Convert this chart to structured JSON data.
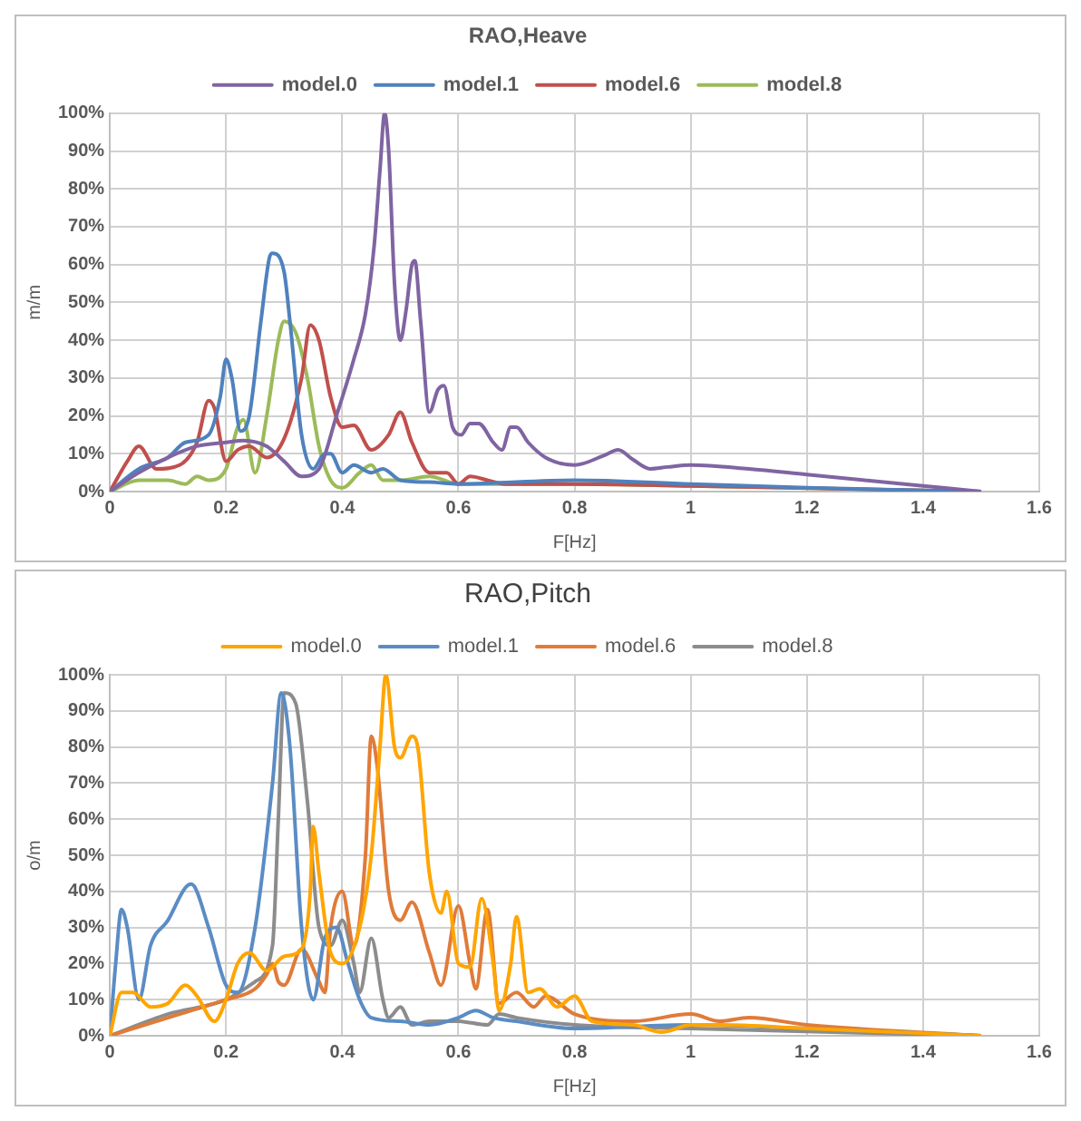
{
  "chart_data": [
    {
      "type": "line",
      "title": "RAO,Heave",
      "xlabel": "F[Hz]",
      "ylabel": "m/m",
      "legend": "top",
      "grid": true,
      "marker": "none",
      "line_style": "solid",
      "xlim": [
        0,
        1.6
      ],
      "xticks": [
        0,
        0.2,
        0.4,
        0.6,
        0.8,
        1,
        1.2,
        1.4,
        1.6
      ],
      "ylim": [
        0,
        100
      ],
      "yticks": [
        {
          "value": 0,
          "label": "0%"
        },
        {
          "value": 10,
          "label": "10%"
        },
        {
          "value": 20,
          "label": "20%"
        },
        {
          "value": 30,
          "label": "30%"
        },
        {
          "value": 40,
          "label": "40%"
        },
        {
          "value": 50,
          "label": "50%"
        },
        {
          "value": 60,
          "label": "60%"
        },
        {
          "value": 70,
          "label": "70%"
        },
        {
          "value": 80,
          "label": "80%"
        },
        {
          "value": 90,
          "label": "90%"
        },
        {
          "value": 100,
          "label": "100%"
        }
      ],
      "series": [
        {
          "name": "model.0",
          "color": "#8064a2",
          "x": [
            0,
            0.05,
            0.1,
            0.15,
            0.2,
            0.23,
            0.27,
            0.3,
            0.33,
            0.36,
            0.39,
            0.42,
            0.44,
            0.455,
            0.465,
            0.473,
            0.48,
            0.49,
            0.5,
            0.51,
            0.52,
            0.525,
            0.535,
            0.55,
            0.565,
            0.575,
            0.59,
            0.605,
            0.62,
            0.635,
            0.66,
            0.675,
            0.69,
            0.7,
            0.72,
            0.75,
            0.8,
            0.85,
            0.875,
            0.9,
            0.93,
            0.96,
            1,
            1.1,
            1.2,
            1.3,
            1.4,
            1.5
          ],
          "values": [
            0,
            5,
            9,
            12,
            13,
            13.5,
            12,
            8,
            4,
            6,
            20,
            35,
            47,
            65,
            85,
            100,
            90,
            55,
            40,
            48,
            60,
            61,
            45,
            21,
            27,
            28,
            17,
            15,
            18,
            18,
            13,
            11,
            17,
            17,
            13,
            9,
            7,
            9.5,
            11,
            8.5,
            6,
            6.5,
            7,
            6,
            4.5,
            3,
            1.5,
            0
          ]
        },
        {
          "name": "model.1",
          "color": "#4f81bd",
          "x": [
            0,
            0.05,
            0.1,
            0.13,
            0.17,
            0.19,
            0.2,
            0.21,
            0.225,
            0.24,
            0.26,
            0.275,
            0.28,
            0.3,
            0.31,
            0.33,
            0.35,
            0.37,
            0.38,
            0.4,
            0.42,
            0.45,
            0.47,
            0.5,
            0.55,
            0.6,
            0.8,
            1,
            1.2,
            1.5
          ],
          "values": [
            0,
            6,
            9,
            13,
            15,
            25,
            35,
            30,
            16,
            20,
            45,
            62,
            63,
            58,
            45,
            15,
            6,
            10,
            10,
            5,
            7,
            5,
            6,
            3,
            2.5,
            2,
            3,
            2,
            1,
            0
          ]
        },
        {
          "name": "model.6",
          "color": "#c0504d",
          "x": [
            0,
            0.03,
            0.05,
            0.08,
            0.12,
            0.15,
            0.17,
            0.18,
            0.2,
            0.22,
            0.24,
            0.27,
            0.3,
            0.33,
            0.345,
            0.36,
            0.38,
            0.4,
            0.42,
            0.45,
            0.48,
            0.5,
            0.52,
            0.55,
            0.58,
            0.6,
            0.62,
            0.65,
            0.68,
            0.8,
            1,
            1.5
          ],
          "values": [
            0,
            8,
            12,
            6,
            7,
            13,
            24,
            22,
            8,
            11,
            12,
            9,
            14,
            30,
            44,
            40,
            25,
            17,
            17.5,
            11,
            15,
            21,
            13,
            5,
            5,
            2,
            4,
            3,
            2,
            2,
            1.5,
            0
          ]
        },
        {
          "name": "model.8",
          "color": "#9bbb59",
          "x": [
            0,
            0.05,
            0.1,
            0.13,
            0.15,
            0.17,
            0.2,
            0.22,
            0.23,
            0.25,
            0.27,
            0.29,
            0.3,
            0.32,
            0.34,
            0.36,
            0.38,
            0.4,
            0.43,
            0.45,
            0.47,
            0.5,
            0.55,
            0.6,
            0.8,
            1,
            1.5
          ],
          "values": [
            0,
            3,
            3,
            2,
            4,
            3,
            6,
            17,
            19,
            5,
            20,
            40,
            45,
            42,
            30,
            12,
            3,
            1,
            5,
            7,
            3,
            3,
            4,
            2,
            2,
            1.5,
            0
          ]
        }
      ]
    },
    {
      "type": "line",
      "title": "RAO,Pitch",
      "xlabel": "F[Hz]",
      "ylabel": "o/m",
      "legend": "top",
      "grid": true,
      "marker": "none",
      "line_style": "solid",
      "xlim": [
        0,
        1.6
      ],
      "xticks": [
        0,
        0.2,
        0.4,
        0.6,
        0.8,
        1,
        1.2,
        1.4,
        1.6
      ],
      "ylim": [
        0,
        100
      ],
      "yticks": [
        {
          "value": 0,
          "label": "0%"
        },
        {
          "value": 10,
          "label": "10%"
        },
        {
          "value": 20,
          "label": "20%"
        },
        {
          "value": 30,
          "label": "30%"
        },
        {
          "value": 40,
          "label": "40%"
        },
        {
          "value": 50,
          "label": "50%"
        },
        {
          "value": 60,
          "label": "60%"
        },
        {
          "value": 70,
          "label": "70%"
        },
        {
          "value": 80,
          "label": "80%"
        },
        {
          "value": 90,
          "label": "90%"
        },
        {
          "value": 100,
          "label": "100%"
        }
      ],
      "series": [
        {
          "name": "model.0",
          "color": "#ffa500",
          "x": [
            0,
            0.02,
            0.04,
            0.07,
            0.1,
            0.13,
            0.15,
            0.18,
            0.2,
            0.22,
            0.24,
            0.27,
            0.3,
            0.33,
            0.345,
            0.35,
            0.36,
            0.38,
            0.4,
            0.43,
            0.45,
            0.465,
            0.475,
            0.49,
            0.5,
            0.52,
            0.53,
            0.55,
            0.57,
            0.58,
            0.6,
            0.62,
            0.64,
            0.66,
            0.67,
            0.69,
            0.7,
            0.72,
            0.74,
            0.77,
            0.8,
            0.83,
            0.9,
            0.95,
            1,
            1.05,
            1.2,
            1.5
          ],
          "values": [
            0,
            12,
            12,
            8,
            9,
            14,
            11,
            4,
            10,
            20,
            23,
            18,
            22,
            24,
            40,
            58,
            45,
            23,
            20,
            30,
            50,
            80,
            100,
            80,
            77,
            83,
            80,
            45,
            34,
            40,
            20,
            19,
            38,
            20,
            7,
            20,
            33,
            12,
            13,
            8,
            11,
            4,
            3,
            1,
            3,
            3,
            2,
            0
          ]
        },
        {
          "name": "model.1",
          "color": "#5b8cc4",
          "x": [
            0,
            0.01,
            0.02,
            0.03,
            0.05,
            0.07,
            0.1,
            0.13,
            0.14,
            0.17,
            0.2,
            0.22,
            0.25,
            0.28,
            0.295,
            0.31,
            0.33,
            0.35,
            0.37,
            0.39,
            0.41,
            0.43,
            0.45,
            0.5,
            0.55,
            0.6,
            0.63,
            0.66,
            0.7,
            0.8,
            1,
            1.2,
            1.5
          ],
          "values": [
            0,
            20,
            35,
            30,
            10,
            25,
            32,
            41,
            42,
            30,
            14,
            12,
            30,
            70,
            95,
            80,
            30,
            10,
            27,
            30,
            20,
            10,
            5,
            4,
            3,
            5,
            7,
            5,
            4,
            2,
            3,
            2,
            0
          ]
        },
        {
          "name": "model.6",
          "color": "#e07b39",
          "x": [
            0,
            0.1,
            0.2,
            0.25,
            0.27,
            0.28,
            0.29,
            0.3,
            0.33,
            0.36,
            0.37,
            0.38,
            0.4,
            0.42,
            0.44,
            0.45,
            0.46,
            0.48,
            0.5,
            0.52,
            0.55,
            0.57,
            0.6,
            0.62,
            0.63,
            0.65,
            0.67,
            0.7,
            0.73,
            0.75,
            0.8,
            0.9,
            1,
            1.05,
            1.1,
            1.2,
            1.5
          ],
          "values": [
            0,
            5,
            10,
            13,
            17,
            20,
            15,
            14,
            24,
            15,
            12,
            30,
            40,
            25,
            50,
            83,
            75,
            40,
            32,
            37,
            23,
            14,
            36,
            20,
            13,
            35,
            9,
            12,
            8,
            11,
            6,
            4,
            6,
            4,
            5,
            3,
            0
          ]
        },
        {
          "name": "model.8",
          "color": "#8c8c8c",
          "x": [
            0,
            0.1,
            0.2,
            0.25,
            0.28,
            0.29,
            0.3,
            0.32,
            0.34,
            0.36,
            0.38,
            0.4,
            0.42,
            0.43,
            0.45,
            0.47,
            0.48,
            0.5,
            0.52,
            0.55,
            0.6,
            0.65,
            0.67,
            0.7,
            0.8,
            1,
            1.5
          ],
          "values": [
            0,
            6,
            10,
            15,
            25,
            60,
            95,
            92,
            65,
            30,
            25,
            32,
            20,
            12,
            27,
            10,
            5,
            8,
            3,
            4,
            4,
            3,
            6,
            5,
            3,
            2,
            0
          ]
        }
      ]
    }
  ]
}
